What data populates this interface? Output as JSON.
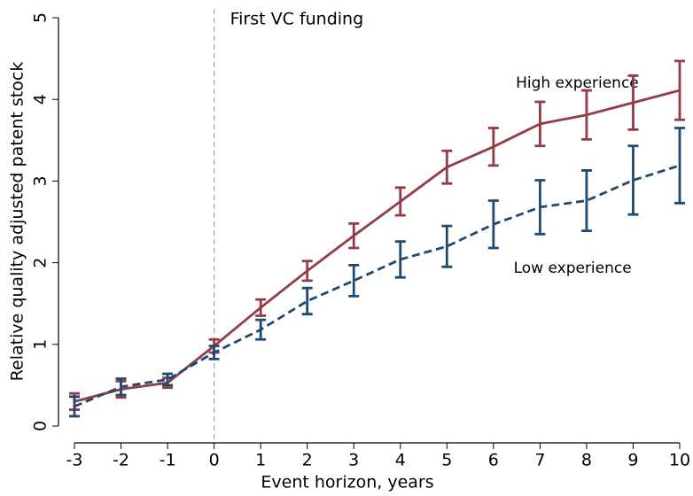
{
  "chart_data": {
    "type": "line",
    "xlabel": "Event horizon, years",
    "ylabel": "Relative quality adjusted patent stock",
    "x": [
      -3,
      -2,
      -1,
      0,
      1,
      2,
      3,
      4,
      5,
      6,
      7,
      8,
      9,
      10
    ],
    "xlim": [
      -3,
      10
    ],
    "xticks": [
      -3,
      -2,
      -1,
      0,
      1,
      2,
      3,
      4,
      5,
      6,
      7,
      8,
      9,
      10
    ],
    "ylim": [
      0,
      5
    ],
    "yticks": [
      0,
      1,
      2,
      3,
      4,
      5
    ],
    "vline": 0,
    "annotations": [
      "First VC funding",
      "High experience",
      "Low experience"
    ],
    "series": [
      {
        "name": "High experience",
        "color": "#943b45",
        "dash": false,
        "values": [
          0.3,
          0.45,
          0.53,
          0.98,
          1.45,
          1.9,
          2.33,
          2.75,
          3.17,
          3.42,
          3.7,
          3.81,
          3.96,
          4.11
        ],
        "errors": [
          0.1,
          0.1,
          0.06,
          0.08,
          0.1,
          0.12,
          0.15,
          0.17,
          0.2,
          0.23,
          0.27,
          0.3,
          0.33,
          0.36
        ]
      },
      {
        "name": "Low experience",
        "color": "#1f4a72",
        "dash": true,
        "values": [
          0.24,
          0.48,
          0.57,
          0.9,
          1.18,
          1.53,
          1.78,
          2.04,
          2.2,
          2.47,
          2.68,
          2.76,
          3.01,
          3.19
        ],
        "errors": [
          0.12,
          0.1,
          0.07,
          0.08,
          0.12,
          0.16,
          0.19,
          0.22,
          0.25,
          0.29,
          0.33,
          0.37,
          0.42,
          0.46
        ]
      }
    ]
  }
}
